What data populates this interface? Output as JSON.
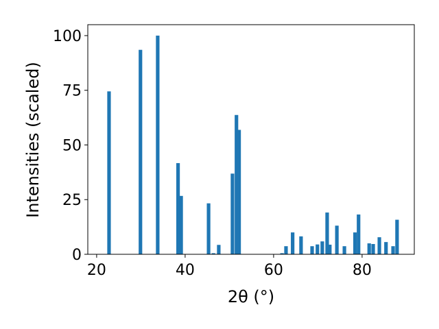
{
  "chart_data": {
    "type": "bar",
    "xlabel": "2θ (°)",
    "ylabel": "Intensities (scaled)",
    "x": [
      22.8,
      29.9,
      33.8,
      38.4,
      39.1,
      45.3,
      46.4,
      47.6,
      50.7,
      51.6,
      52.2,
      61.9,
      62.8,
      64.3,
      66.2,
      68.7,
      69.9,
      71.0,
      72.1,
      72.7,
      74.3,
      76.0,
      78.4,
      79.2,
      81.6,
      82.5,
      83.9,
      85.4,
      87.0,
      87.9
    ],
    "values": [
      74.5,
      93.5,
      100,
      41.7,
      26.7,
      23.3,
      0.5,
      4.3,
      36.9,
      63.7,
      56.9,
      0.5,
      3.7,
      10,
      8.2,
      3.7,
      4.5,
      5.9,
      19.1,
      4.4,
      13.1,
      3.7,
      10,
      18.2,
      5,
      4.7,
      7.8,
      5.6,
      3.7,
      15.8
    ],
    "color": "#1f77b4",
    "xlim": [
      18.0,
      91.8
    ],
    "xticks": [
      20,
      40,
      60,
      80
    ],
    "ylim": [
      0,
      105
    ],
    "yticks": [
      0,
      25,
      50,
      75,
      100
    ],
    "grid": false
  }
}
